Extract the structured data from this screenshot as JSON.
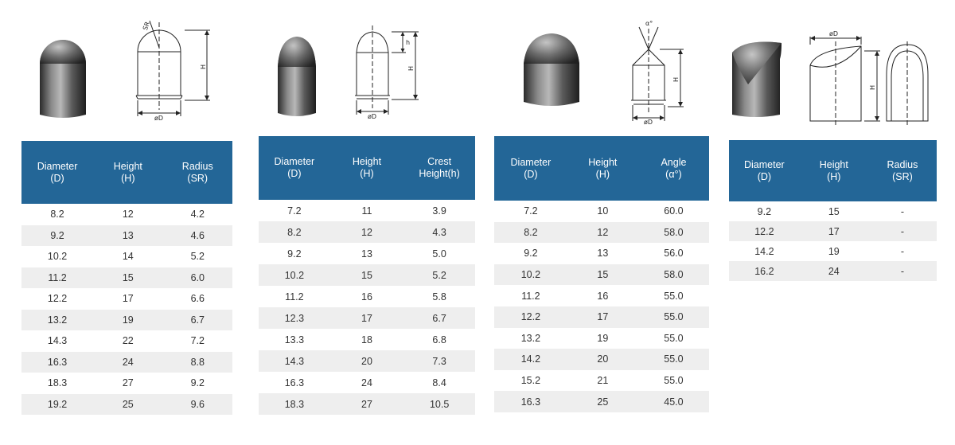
{
  "panels": [
    {
      "headers": [
        "Diameter\n(D)",
        "Height\n(H)",
        "Radius\n(SR)"
      ],
      "drawing_labels": [
        "SR",
        "H",
        "øD"
      ],
      "rows": [
        [
          "8.2",
          "12",
          "4.2"
        ],
        [
          "9.2",
          "13",
          "4.6"
        ],
        [
          "10.2",
          "14",
          "5.2"
        ],
        [
          "11.2",
          "15",
          "6.0"
        ],
        [
          "12.2",
          "17",
          "6.6"
        ],
        [
          "13.2",
          "19",
          "6.7"
        ],
        [
          "14.3",
          "22",
          "7.2"
        ],
        [
          "16.3",
          "24",
          "8.8"
        ],
        [
          "18.3",
          "27",
          "9.2"
        ],
        [
          "19.2",
          "25",
          "9.6"
        ]
      ]
    },
    {
      "headers": [
        "Diameter\n(D)",
        "Height\n(H)",
        "Crest\nHeight(h)"
      ],
      "drawing_labels": [
        "h",
        "H",
        "øD"
      ],
      "rows": [
        [
          "7.2",
          "11",
          "3.9"
        ],
        [
          "8.2",
          "12",
          "4.3"
        ],
        [
          "9.2",
          "13",
          "5.0"
        ],
        [
          "10.2",
          "15",
          "5.2"
        ],
        [
          "11.2",
          "16",
          "5.8"
        ],
        [
          "12.3",
          "17",
          "6.7"
        ],
        [
          "13.3",
          "18",
          "6.8"
        ],
        [
          "14.3",
          "20",
          "7.3"
        ],
        [
          "16.3",
          "24",
          "8.4"
        ],
        [
          "18.3",
          "27",
          "10.5"
        ]
      ]
    },
    {
      "headers": [
        "Diameter\n(D)",
        "Height\n(H)",
        "Angle\n(α°)"
      ],
      "drawing_labels": [
        "α°",
        "H",
        "øD"
      ],
      "rows": [
        [
          "7.2",
          "10",
          "60.0"
        ],
        [
          "8.2",
          "12",
          "58.0"
        ],
        [
          "9.2",
          "13",
          "56.0"
        ],
        [
          "10.2",
          "15",
          "58.0"
        ],
        [
          "11.2",
          "16",
          "55.0"
        ],
        [
          "12.2",
          "17",
          "55.0"
        ],
        [
          "13.2",
          "19",
          "55.0"
        ],
        [
          "14.2",
          "20",
          "55.0"
        ],
        [
          "15.2",
          "21",
          "55.0"
        ],
        [
          "16.3",
          "25",
          "45.0"
        ]
      ]
    },
    {
      "headers": [
        "Diameter\n(D)",
        "Height\n(H)",
        "Radius\n(SR)"
      ],
      "drawing_labels": [
        "øD",
        "H"
      ],
      "rows": [
        [
          "9.2",
          "15",
          "-"
        ],
        [
          "12.2",
          "17",
          "-"
        ],
        [
          "14.2",
          "19",
          "-"
        ],
        [
          "16.2",
          "24",
          "-"
        ]
      ]
    }
  ],
  "colors": {
    "header_bg": "#236697",
    "header_text": "#ffffff",
    "row_alt": "#eeeeee"
  }
}
